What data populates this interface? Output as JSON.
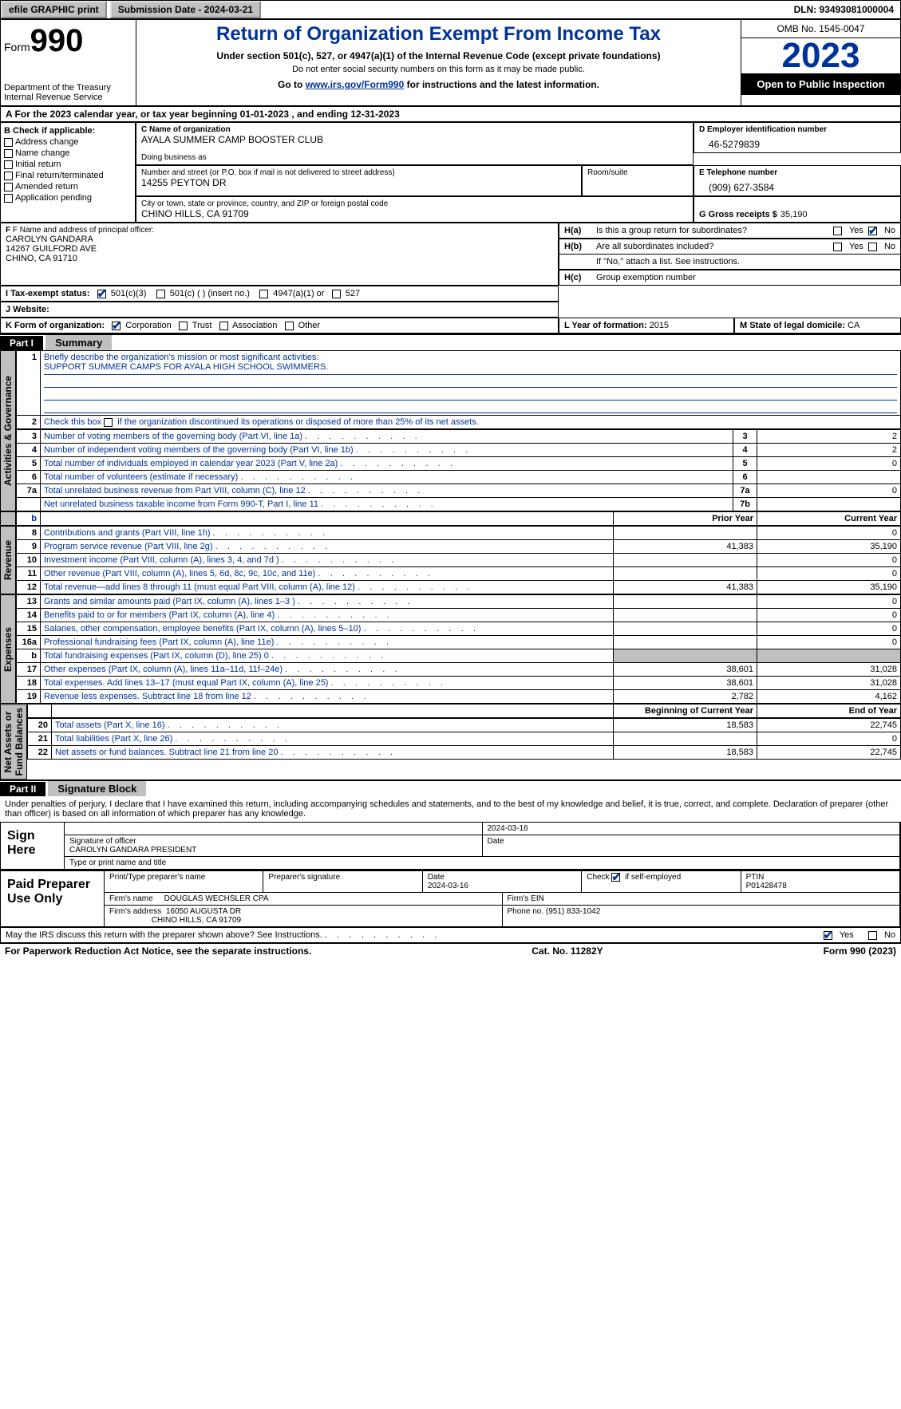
{
  "topbar": {
    "efile": "efile GRAPHIC print",
    "submission": "Submission Date - 2024-03-21",
    "dln": "DLN: 93493081000004"
  },
  "header": {
    "form_label": "Form",
    "form_num": "990",
    "title": "Return of Organization Exempt From Income Tax",
    "sub1": "Under section 501(c), 527, or 4947(a)(1) of the Internal Revenue Code (except private foundations)",
    "sub2": "Do not enter social security numbers on this form as it may be made public.",
    "sub3_pre": "Go to ",
    "sub3_link": "www.irs.gov/Form990",
    "sub3_post": " for instructions and the latest information.",
    "dept": "Department of the Treasury\nInternal Revenue Service",
    "omb": "OMB No. 1545-0047",
    "year": "2023",
    "open": "Open to Public Inspection"
  },
  "row_a": "A For the 2023 calendar year, or tax year beginning 01-01-2023    , and ending 12-31-2023",
  "col_b": {
    "hdr": "B Check if applicable:",
    "items": [
      "Address change",
      "Name change",
      "Initial return",
      "Final return/terminated",
      "Amended return",
      "Application pending"
    ]
  },
  "c": {
    "name_lbl": "C Name of organization",
    "name": "AYALA SUMMER CAMP BOOSTER CLUB",
    "dba_lbl": "Doing business as",
    "dba": "",
    "street_lbl": "Number and street (or P.O. box if mail is not delivered to street address)",
    "street": "14255 PEYTON DR",
    "room_lbl": "Room/suite",
    "city_lbl": "City or town, state or province, country, and ZIP or foreign postal code",
    "city": "CHINO HILLS, CA  91709"
  },
  "d": {
    "lbl": "D Employer identification number",
    "val": "46-5279839"
  },
  "e": {
    "lbl": "E Telephone number",
    "val": "(909) 627-3584"
  },
  "g": {
    "lbl": "G Gross receipts $",
    "val": "35,190"
  },
  "f": {
    "lbl": "F  Name and address of principal officer:",
    "name": "CAROLYN GANDARA",
    "addr1": "14267 GUILFORD AVE",
    "addr2": "CHINO, CA  91710"
  },
  "h": {
    "a_lbl": "H(a)",
    "a_txt": "Is this a group return for subordinates?",
    "b_lbl": "H(b)",
    "b_txt": "Are all subordinates included?",
    "b_note": "If \"No,\" attach a list. See instructions.",
    "c_lbl": "H(c)",
    "c_txt": "Group exemption number"
  },
  "i": {
    "lbl": "I   Tax-exempt status:",
    "opts": [
      "501(c)(3)",
      "501(c) (  ) (insert no.)",
      "4947(a)(1) or",
      "527"
    ]
  },
  "j": {
    "lbl": "J   Website:",
    "val": ""
  },
  "k": {
    "lbl": "K Form of organization:",
    "opts": [
      "Corporation",
      "Trust",
      "Association",
      "Other"
    ]
  },
  "l": {
    "lbl": "L Year of formation:",
    "val": "2015"
  },
  "m": {
    "lbl": "M State of legal domicile:",
    "val": "CA"
  },
  "parts": {
    "p1": "Part I",
    "p1t": "Summary",
    "p2": "Part II",
    "p2t": "Signature Block"
  },
  "side_labels": {
    "ag": "Activities & Governance",
    "rev": "Revenue",
    "exp": "Expenses",
    "na": "Net Assets or\nFund Balances"
  },
  "summary": {
    "l1_lbl": "Briefly describe the organization's mission or most significant activities:",
    "l1_val": "SUPPORT SUMMER CAMPS FOR AYALA HIGH SCHOOL SWIMMERS.",
    "l2": "Check this box          if the organization discontinued its operations or disposed of more than 25% of its net assets.",
    "rows_ag": [
      {
        "n": "3",
        "t": "Number of voting members of the governing body (Part VI, line 1a)",
        "r": "3",
        "v": "2"
      },
      {
        "n": "4",
        "t": "Number of independent voting members of the governing body (Part VI, line 1b)",
        "r": "4",
        "v": "2"
      },
      {
        "n": "5",
        "t": "Total number of individuals employed in calendar year 2023 (Part V, line 2a)",
        "r": "5",
        "v": "0"
      },
      {
        "n": "6",
        "t": "Total number of volunteers (estimate if necessary)",
        "r": "6",
        "v": ""
      },
      {
        "n": "7a",
        "t": "Total unrelated business revenue from Part VIII, column (C), line 12",
        "r": "7a",
        "v": "0"
      },
      {
        "n": "",
        "t": "Net unrelated business taxable income from Form 990-T, Part I, line 11",
        "r": "7b",
        "v": ""
      }
    ],
    "hdr_prior": "Prior Year",
    "hdr_curr": "Current Year",
    "rows_rev": [
      {
        "n": "8",
        "t": "Contributions and grants (Part VIII, line 1h)",
        "p": "",
        "c": "0"
      },
      {
        "n": "9",
        "t": "Program service revenue (Part VIII, line 2g)",
        "p": "41,383",
        "c": "35,190"
      },
      {
        "n": "10",
        "t": "Investment income (Part VIII, column (A), lines 3, 4, and 7d )",
        "p": "",
        "c": "0"
      },
      {
        "n": "11",
        "t": "Other revenue (Part VIII, column (A), lines 5, 6d, 8c, 9c, 10c, and 11e)",
        "p": "",
        "c": "0"
      },
      {
        "n": "12",
        "t": "Total revenue—add lines 8 through 11 (must equal Part VIII, column (A), line 12)",
        "p": "41,383",
        "c": "35,190"
      }
    ],
    "rows_exp": [
      {
        "n": "13",
        "t": "Grants and similar amounts paid (Part IX, column (A), lines 1–3 )",
        "p": "",
        "c": "0"
      },
      {
        "n": "14",
        "t": "Benefits paid to or for members (Part IX, column (A), line 4)",
        "p": "",
        "c": "0"
      },
      {
        "n": "15",
        "t": "Salaries, other compensation, employee benefits (Part IX, column (A), lines 5–10)",
        "p": "",
        "c": "0"
      },
      {
        "n": "16a",
        "t": "Professional fundraising fees (Part IX, column (A), line 11e)",
        "p": "",
        "c": "0"
      },
      {
        "n": "b",
        "t": "Total fundraising expenses (Part IX, column (D), line 25) 0",
        "p": "GREY",
        "c": "GREY"
      },
      {
        "n": "17",
        "t": "Other expenses (Part IX, column (A), lines 11a–11d, 11f–24e)",
        "p": "38,601",
        "c": "31,028"
      },
      {
        "n": "18",
        "t": "Total expenses. Add lines 13–17 (must equal Part IX, column (A), line 25)",
        "p": "38,601",
        "c": "31,028"
      },
      {
        "n": "19",
        "t": "Revenue less expenses. Subtract line 18 from line 12",
        "p": "2,782",
        "c": "4,162"
      }
    ],
    "hdr_beg": "Beginning of Current Year",
    "hdr_end": "End of Year",
    "rows_na": [
      {
        "n": "20",
        "t": "Total assets (Part X, line 16)",
        "p": "18,583",
        "c": "22,745"
      },
      {
        "n": "21",
        "t": "Total liabilities (Part X, line 26)",
        "p": "",
        "c": "0"
      },
      {
        "n": "22",
        "t": "Net assets or fund balances. Subtract line 21 from line 20",
        "p": "18,583",
        "c": "22,745"
      }
    ]
  },
  "penalty": "Under penalties of perjury, I declare that I have examined this return, including accompanying schedules and statements, and to the best of my knowledge and belief, it is true, correct, and complete. Declaration of preparer (other than officer) is based on all information of which preparer has any knowledge.",
  "sign": {
    "here": "Sign Here",
    "sig_lbl": "Signature of officer",
    "sig_name": "CAROLYN GANDARA  PRESIDENT",
    "type_lbl": "Type or print name and title",
    "date_lbl": "Date",
    "date": "2024-03-16"
  },
  "paid": {
    "hdr": "Paid Preparer Use Only",
    "pname_lbl": "Print/Type preparer's name",
    "psig_lbl": "Preparer's signature",
    "pdate_lbl": "Date",
    "pdate": "2024-03-16",
    "chk_lbl": "Check         if self-employed",
    "ptin_lbl": "PTIN",
    "ptin": "P01428478",
    "firm_lbl": "Firm's name",
    "firm": "DOUGLAS WECHSLER CPA",
    "ein_lbl": "Firm's EIN",
    "addr_lbl": "Firm's address",
    "addr1": "16050 AUGUSTA DR",
    "addr2": "CHINO HILLS, CA  91709",
    "phone_lbl": "Phone no.",
    "phone": "(951) 833-1042"
  },
  "discuss": "May the IRS discuss this return with the preparer shown above? See Instructions.",
  "footer": {
    "left": "For Paperwork Reduction Act Notice, see the separate instructions.",
    "mid": "Cat. No. 11282Y",
    "right_pre": "Form ",
    "right_b": "990",
    "right_post": " (2023)"
  },
  "yn": {
    "yes": "Yes",
    "no": "No"
  }
}
